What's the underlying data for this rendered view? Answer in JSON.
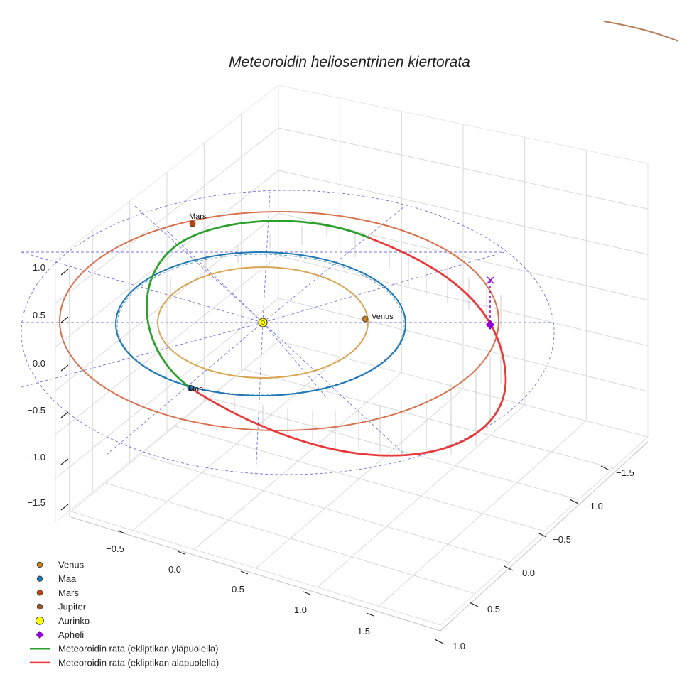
{
  "chart_data": {
    "type": "line",
    "title": "Meteoroidin heliosentrinen kiertorata",
    "axis_ticks": {
      "z": [
        "1.0",
        "0.5",
        "0.0",
        "−0.5",
        "−1.0",
        "−1.5"
      ],
      "x": [
        "−0.5",
        "0.0",
        "0.5",
        "1.0",
        "1.5"
      ],
      "y": [
        "−1.5",
        "−1.0",
        "−0.5",
        "0.0",
        "0.5",
        "1.0"
      ]
    },
    "planet_labels": {
      "mars": "Mars",
      "venus": "Venus",
      "earth": "Maa"
    },
    "legend": [
      {
        "label": "Venus",
        "marker": "circle",
        "color": "#c9821e"
      },
      {
        "label": "Maa",
        "marker": "circle",
        "color": "#1f77b4"
      },
      {
        "label": "Mars",
        "marker": "circle",
        "color": "#c1440e"
      },
      {
        "label": "Jupiter",
        "marker": "circle",
        "color": "#a0522d"
      },
      {
        "label": "Aurinko",
        "marker": "circle",
        "color": "#ffff00"
      },
      {
        "label": "Apheli",
        "marker": "diamond",
        "color": "#9400d3"
      },
      {
        "label": "Meteoroidin rata (ekliptikan yläpuolella)",
        "marker": "line",
        "color": "#2ca02c"
      },
      {
        "label": "Meteoroidin rata (ekliptikan alapuolella)",
        "marker": "line",
        "color": "#e8393b"
      }
    ],
    "colors": {
      "venus_orbit": "#d9a550",
      "earth_orbit": "#1f77b4",
      "mars_orbit": "#d9704e",
      "jupiter_orbit": "#b07f5c",
      "above_ecliptic": "#2ca02c",
      "below_ecliptic": "#e8393b",
      "grid_lines": "#5b5bd6",
      "aphelion": "#9400d3",
      "sun": "#ffff00"
    },
    "grid": true,
    "legend_position": "lower-left"
  }
}
